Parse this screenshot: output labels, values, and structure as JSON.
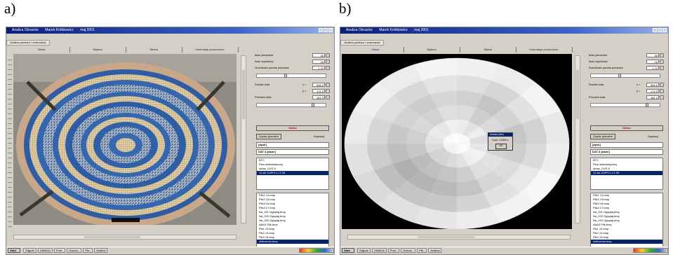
{
  "labels": {
    "a": "a)",
    "b": "b)"
  },
  "window": {
    "title": "Analiza Obrazów",
    "subtitle": "Marek Krótkiewicz",
    "date": "maj 2001",
    "tab_group": "Analiza pomiaru i zmierzania",
    "tabs": [
      "Obraz",
      "Wykres",
      "Tabela",
      "Informacje pomocnicze"
    ]
  },
  "params": {
    "rows": [
      {
        "label": "Ilość pierścieni",
        "value": "30"
      },
      {
        "label": "Ilość wycinków",
        "value": "16"
      },
      {
        "label": "Szerokość pomiar pierwsze",
        "value": "1.00"
      }
    ],
    "center_label": "Środek koła",
    "center_x_label": "x =",
    "center_x": "304.0",
    "center_y_label": "y =",
    "center_y": "174.9",
    "radius_label": "Promień koła",
    "radius": "161.3",
    "compute_button": "Oblicz",
    "save_button": "Zapisz globalne",
    "fit_label": "Dopasuj",
    "drive": "[dysk]",
    "folder": "DAT A [dane]"
  },
  "tree": [
    "BTC",
    "Plan daltonistyczny",
    "obraz_DVS 6",
    "12-84 ZUPFL1 LT-25"
  ],
  "files": [
    "Plik1 14.bmp",
    "Plik2 15.bmp",
    "Plik3 16.bmp",
    "Plik4 17.bmp",
    "Na_201 Oglądaj.bmp",
    "Na_202 Oglądaj.bmp",
    "Na_203 Oglądaj.bmp",
    "Ala10 Plik.bmp",
    "Pik1 13.bmp",
    "Pik2 14.bmp",
    "Pik3 15.bmp",
    "obliczenia.bmp"
  ],
  "dialog": {
    "title": "Analiza pliku",
    "text": "Czas: 0.0000 s",
    "ok": "OK"
  },
  "taskbar": {
    "start": "Start",
    "tasks": [
      "Zdjęcie",
      "UWAGA",
      "Prze..",
      "Dokum..",
      "Ple..",
      "Analiza",
      "Analiza"
    ]
  },
  "colors": {
    "titlebar": "#0a246a",
    "selection": "#0a246a",
    "compute_text": "#c00000",
    "face": "#d4d0c8"
  }
}
